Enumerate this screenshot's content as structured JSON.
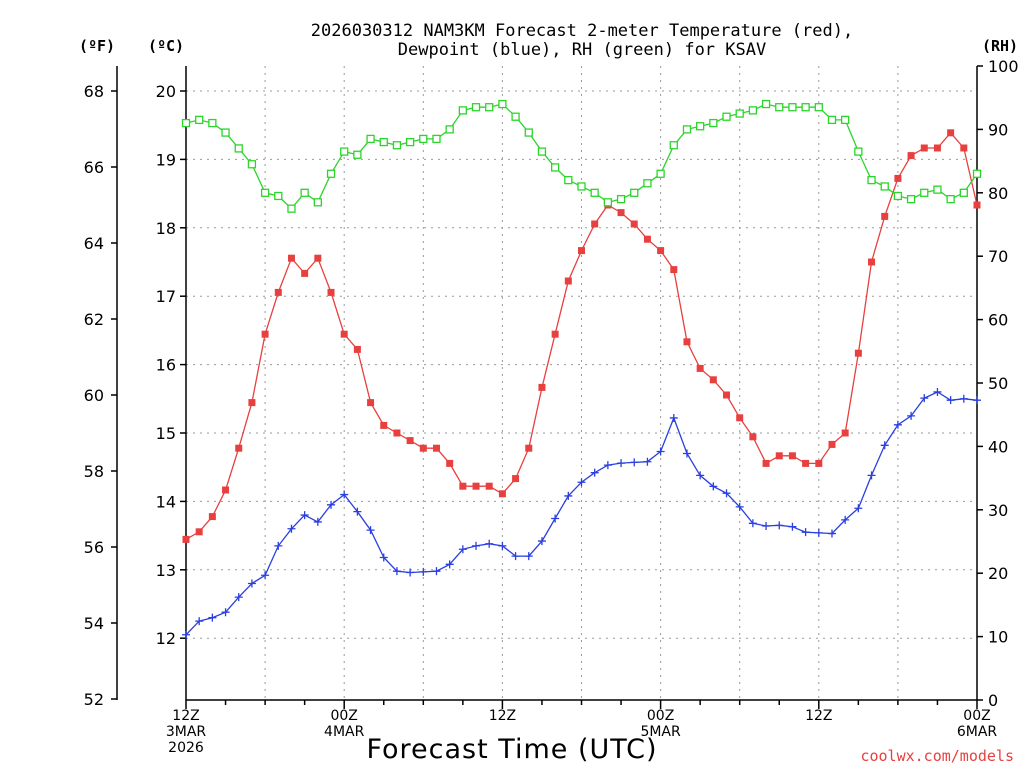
{
  "chart_data": {
    "type": "line",
    "title_line1": "2026030312 NAM3KM Forecast 2-meter Temperature (red),",
    "title_line2": "Dewpoint (blue), RH (green) for KSAV",
    "axis_units": {
      "fahrenheit": "(ºF)",
      "celsius": "(ºC)",
      "rh": "(RH)"
    },
    "xlabel": "Forecast Time (UTC)",
    "credit": "coolwx.com/models",
    "x_range_hours": [
      0,
      60
    ],
    "x_ticks": [
      {
        "hour": 0,
        "lines": [
          "12Z",
          "3MAR",
          "2026"
        ]
      },
      {
        "hour": 12,
        "lines": [
          "00Z",
          "4MAR"
        ]
      },
      {
        "hour": 24,
        "lines": [
          "12Z"
        ]
      },
      {
        "hour": 36,
        "lines": [
          "00Z",
          "5MAR"
        ]
      },
      {
        "hour": 48,
        "lines": [
          "12Z"
        ]
      },
      {
        "hour": 60,
        "lines": [
          "00Z",
          "6MAR"
        ]
      }
    ],
    "fahrenheit_axis": {
      "ticks": [
        52,
        54,
        56,
        58,
        60,
        62,
        64,
        66,
        68
      ]
    },
    "celsius_axis": {
      "range": [
        11.0,
        20.25
      ],
      "ticks": [
        12,
        13,
        14,
        15,
        16,
        17,
        18,
        19,
        20
      ]
    },
    "rh_axis": {
      "range": [
        0,
        100
      ],
      "ticks": [
        0,
        10,
        20,
        30,
        40,
        50,
        60,
        70,
        80,
        90,
        100
      ]
    },
    "colors": {
      "temperature": "#e8403f",
      "dewpoint": "#2a3fe0",
      "rh": "#2bd52b",
      "grid": "#9a9a9a"
    },
    "series": [
      {
        "name": "Temperature (°F)",
        "color": "#e8403f",
        "marker": "filled-square",
        "axis": "fahrenheit",
        "x": [
          0,
          1,
          2,
          3,
          4,
          5,
          6,
          7,
          8,
          9,
          10,
          11,
          12,
          13,
          14,
          15,
          16,
          17,
          18,
          19,
          20,
          21,
          22,
          23,
          24,
          25,
          26,
          27,
          28,
          29,
          30,
          31,
          32,
          33,
          34,
          35,
          36,
          37,
          38,
          39,
          40,
          41,
          42,
          43,
          44,
          45,
          46,
          47,
          48,
          49,
          50,
          51,
          52,
          53,
          54,
          55,
          56,
          57,
          58,
          59,
          60
        ],
        "values": [
          56.2,
          56.4,
          56.8,
          57.5,
          58.6,
          59.8,
          61.6,
          62.7,
          63.6,
          63.2,
          63.6,
          62.7,
          61.6,
          61.2,
          59.8,
          59.2,
          59.0,
          58.8,
          58.6,
          58.6,
          58.2,
          57.6,
          57.6,
          57.6,
          57.4,
          57.8,
          58.6,
          60.2,
          61.6,
          63.0,
          63.8,
          64.5,
          65.0,
          64.8,
          64.5,
          64.1,
          63.8,
          63.3,
          61.4,
          60.7,
          60.4,
          60.0,
          59.4,
          58.9,
          58.2,
          58.4,
          58.4,
          58.2,
          58.2,
          58.7,
          59.0,
          61.1,
          63.5,
          64.7,
          65.7,
          66.3,
          66.5,
          66.5,
          66.9,
          66.5,
          65.0
        ]
      },
      {
        "name": "Dewpoint (°C)",
        "color": "#2a3fe0",
        "marker": "plus",
        "axis": "celsius",
        "x": [
          0,
          1,
          2,
          3,
          4,
          5,
          6,
          7,
          8,
          9,
          10,
          11,
          12,
          13,
          14,
          15,
          16,
          17,
          18,
          19,
          20,
          21,
          22,
          23,
          24,
          25,
          26,
          27,
          28,
          29,
          30,
          31,
          32,
          33,
          34,
          35,
          36,
          37,
          38,
          39,
          40,
          41,
          42,
          43,
          44,
          45,
          46,
          47,
          48,
          49,
          50,
          51,
          52,
          53,
          54,
          55,
          56,
          57,
          58,
          59,
          60
        ],
        "values": [
          12.05,
          12.25,
          12.3,
          12.38,
          12.6,
          12.8,
          12.92,
          13.35,
          13.6,
          13.8,
          13.7,
          13.95,
          14.1,
          13.85,
          13.58,
          13.18,
          12.98,
          12.96,
          12.97,
          12.98,
          13.08,
          13.3,
          13.35,
          13.38,
          13.35,
          13.2,
          13.2,
          13.42,
          13.75,
          14.08,
          14.28,
          14.42,
          14.53,
          14.56,
          14.57,
          14.58,
          14.73,
          15.22,
          14.7,
          14.38,
          14.22,
          14.12,
          13.92,
          13.68,
          13.64,
          13.65,
          13.63,
          13.55,
          13.54,
          13.53,
          13.73,
          13.9,
          14.38,
          14.82,
          15.12,
          15.25,
          15.51,
          15.6,
          15.48,
          15.5,
          15.48
        ]
      },
      {
        "name": "RH (%)",
        "color": "#2bd52b",
        "marker": "open-square",
        "axis": "rh",
        "x": [
          0,
          1,
          2,
          3,
          4,
          5,
          6,
          7,
          8,
          9,
          10,
          11,
          12,
          13,
          14,
          15,
          16,
          17,
          18,
          19,
          20,
          21,
          22,
          23,
          24,
          25,
          26,
          27,
          28,
          29,
          30,
          31,
          32,
          33,
          34,
          35,
          36,
          37,
          38,
          39,
          40,
          41,
          42,
          43,
          44,
          45,
          46,
          47,
          48,
          49,
          50,
          51,
          52,
          53,
          54,
          55,
          56,
          57,
          58,
          59,
          60
        ],
        "values": [
          91,
          91.5,
          91,
          89.5,
          87,
          84.5,
          80,
          79.5,
          77.5,
          80,
          78.5,
          83,
          86.5,
          86,
          88.5,
          88,
          87.5,
          88,
          88.5,
          88.5,
          90,
          93,
          93.5,
          93.5,
          94,
          92,
          89.5,
          86.5,
          84,
          82,
          81,
          80,
          78.5,
          79,
          80,
          81.5,
          83,
          87.5,
          90,
          90.5,
          91,
          92,
          92.5,
          93,
          94,
          93.5,
          93.5,
          93.5,
          93.5,
          91.5,
          91.5,
          86.5,
          82,
          81,
          79.5,
          79,
          80,
          80.5,
          79,
          80,
          83
        ]
      }
    ]
  }
}
